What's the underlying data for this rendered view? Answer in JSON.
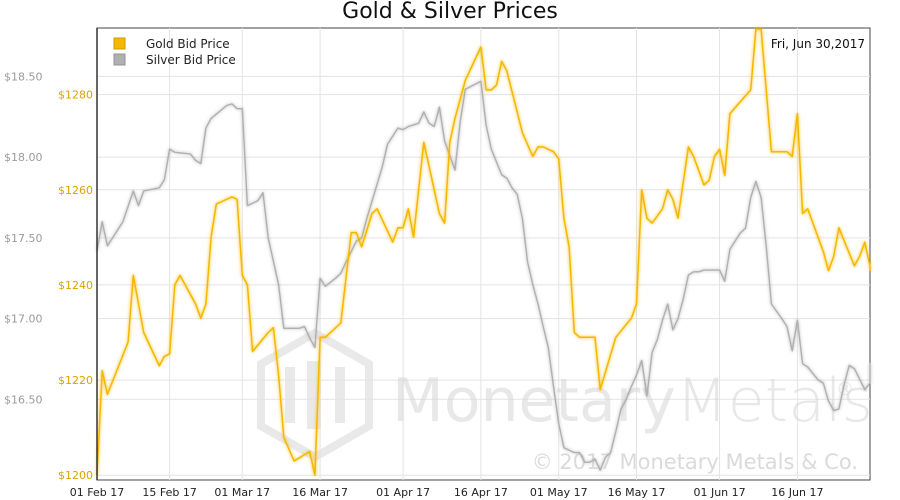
{
  "chart_data": {
    "type": "line",
    "title": "Gold & Silver Prices",
    "date_label": "Fri, Jun 30,2017",
    "x_tick_labels": [
      "01 Feb 17",
      "15 Feb 17",
      "01 Mar 17",
      "16 Mar 17",
      "01 Apr 17",
      "16 Apr 17",
      "01 May 17",
      "16 May 17",
      "01 Jun 17",
      "16 Jun 17"
    ],
    "x_ticks_day": [
      0,
      14,
      28,
      43,
      59,
      74,
      89,
      104,
      120,
      135
    ],
    "x_range_day": [
      0,
      149
    ],
    "grid": true,
    "legend_position": "top-left",
    "y_gold": {
      "ticks": [
        1200,
        1220,
        1240,
        1260,
        1280
      ],
      "tick_labels": [
        "$1200",
        "$1220",
        "$1240",
        "$1260",
        "$1280"
      ],
      "range": [
        1199,
        1294
      ]
    },
    "y_silver": {
      "ticks": [
        16.5,
        17.0,
        17.5,
        18.0,
        18.5
      ],
      "tick_labels": [
        "$16.50",
        "$17.00",
        "$17.50",
        "$18.00",
        "$18.50"
      ],
      "range": [
        16.0,
        18.8
      ]
    },
    "series": [
      {
        "name": "Gold Bid Price",
        "color": "#f5b800",
        "axis": "left",
        "points": [
          [
            0,
            1200
          ],
          [
            1,
            1222
          ],
          [
            2,
            1217
          ],
          [
            6,
            1228
          ],
          [
            7,
            1242
          ],
          [
            9,
            1230
          ],
          [
            12,
            1223
          ],
          [
            13,
            1225
          ],
          [
            14,
            1225.5
          ],
          [
            15,
            1240
          ],
          [
            16,
            1242
          ],
          [
            19,
            1236
          ],
          [
            20,
            1233
          ],
          [
            21,
            1236
          ],
          [
            22,
            1250
          ],
          [
            23,
            1257
          ],
          [
            26,
            1258.5
          ],
          [
            27,
            1258
          ],
          [
            28,
            1242
          ],
          [
            29,
            1240
          ],
          [
            30,
            1226
          ],
          [
            33,
            1230
          ],
          [
            34,
            1231
          ],
          [
            35,
            1221
          ],
          [
            36,
            1208
          ],
          [
            38,
            1203
          ],
          [
            41,
            1205
          ],
          [
            42,
            1200
          ],
          [
            43,
            1229
          ],
          [
            44,
            1229
          ],
          [
            47,
            1232
          ],
          [
            49,
            1251
          ],
          [
            50,
            1251
          ],
          [
            51,
            1248
          ],
          [
            53,
            1255
          ],
          [
            54,
            1256
          ],
          [
            57,
            1249
          ],
          [
            58,
            1252
          ],
          [
            59,
            1252
          ],
          [
            60,
            1256
          ],
          [
            61,
            1250
          ],
          [
            63,
            1270
          ],
          [
            65,
            1260
          ],
          [
            66,
            1255
          ],
          [
            67,
            1253
          ],
          [
            68,
            1270
          ],
          [
            69,
            1275
          ],
          [
            71,
            1283
          ],
          [
            74,
            1290
          ],
          [
            75,
            1281
          ],
          [
            76,
            1281
          ],
          [
            77,
            1282
          ],
          [
            78,
            1287
          ],
          [
            79,
            1285
          ],
          [
            82,
            1272
          ],
          [
            84,
            1267
          ],
          [
            85,
            1269
          ],
          [
            86,
            1269
          ],
          [
            88,
            1268
          ],
          [
            89,
            1266.5
          ],
          [
            90,
            1254
          ],
          [
            91,
            1248
          ],
          [
            92,
            1230
          ],
          [
            93,
            1229
          ],
          [
            96,
            1229
          ],
          [
            97,
            1218
          ],
          [
            100,
            1229
          ],
          [
            103,
            1233
          ],
          [
            104,
            1236
          ],
          [
            105,
            1260
          ],
          [
            106,
            1254
          ],
          [
            107,
            1253
          ],
          [
            109,
            1256
          ],
          [
            110,
            1260
          ],
          [
            111,
            1258
          ],
          [
            112,
            1254
          ],
          [
            114,
            1269
          ],
          [
            115,
            1267
          ],
          [
            117,
            1261
          ],
          [
            118,
            1262
          ],
          [
            119,
            1267
          ],
          [
            120,
            1268.5
          ],
          [
            121,
            1263
          ],
          [
            122,
            1276
          ],
          [
            126,
            1281
          ],
          [
            127,
            1298
          ],
          [
            128,
            1296
          ],
          [
            130,
            1268
          ],
          [
            131,
            1268
          ],
          [
            133,
            1268
          ],
          [
            134,
            1267
          ],
          [
            135,
            1276
          ],
          [
            136,
            1255
          ],
          [
            137,
            1256
          ],
          [
            140,
            1247
          ],
          [
            141,
            1243
          ],
          [
            142,
            1246
          ],
          [
            143,
            1252
          ],
          [
            146,
            1244
          ],
          [
            147,
            1246
          ],
          [
            148,
            1249
          ],
          [
            149,
            1244
          ],
          [
            150,
            1243
          ]
        ]
      },
      {
        "name": "Silver Bid Price",
        "color": "#b0b0b0",
        "axis": "right",
        "points": [
          [
            0,
            17.42
          ],
          [
            1,
            17.6
          ],
          [
            2,
            17.45
          ],
          [
            5,
            17.6
          ],
          [
            7,
            17.79
          ],
          [
            8,
            17.7
          ],
          [
            9,
            17.79
          ],
          [
            12,
            17.81
          ],
          [
            13,
            17.86
          ],
          [
            14,
            18.05
          ],
          [
            15,
            18.03
          ],
          [
            18,
            18.02
          ],
          [
            19,
            17.98
          ],
          [
            20,
            17.96
          ],
          [
            21,
            18.18
          ],
          [
            22,
            18.24
          ],
          [
            25,
            18.32
          ],
          [
            26,
            18.33
          ],
          [
            27,
            18.3
          ],
          [
            28,
            18.3
          ],
          [
            29,
            17.7
          ],
          [
            31,
            17.73
          ],
          [
            32,
            17.78
          ],
          [
            33,
            17.5
          ],
          [
            35,
            17.21
          ],
          [
            36,
            16.94
          ],
          [
            39,
            16.94
          ],
          [
            40,
            16.95
          ],
          [
            41,
            16.88
          ],
          [
            42,
            16.82
          ],
          [
            43,
            17.25
          ],
          [
            44,
            17.2
          ],
          [
            46,
            17.25
          ],
          [
            47,
            17.28
          ],
          [
            48,
            17.35
          ],
          [
            50,
            17.48
          ],
          [
            51,
            17.5
          ],
          [
            52,
            17.62
          ],
          [
            55,
            17.94
          ],
          [
            56,
            18.08
          ],
          [
            58,
            18.18
          ],
          [
            59,
            18.17
          ],
          [
            60,
            18.19
          ],
          [
            61,
            18.2
          ],
          [
            62,
            18.21
          ],
          [
            63,
            18.28
          ],
          [
            64,
            18.21
          ],
          [
            65,
            18.19
          ],
          [
            66,
            18.31
          ],
          [
            67,
            18.1
          ],
          [
            69,
            17.92
          ],
          [
            70,
            18.22
          ],
          [
            71,
            18.42
          ],
          [
            74,
            18.47
          ],
          [
            75,
            18.2
          ],
          [
            76,
            18.05
          ],
          [
            78,
            17.89
          ],
          [
            79,
            17.87
          ],
          [
            80,
            17.81
          ],
          [
            81,
            17.77
          ],
          [
            82,
            17.62
          ],
          [
            83,
            17.35
          ],
          [
            84,
            17.21
          ],
          [
            85,
            17.09
          ],
          [
            86,
            16.95
          ],
          [
            87,
            16.82
          ],
          [
            88,
            16.58
          ],
          [
            89,
            16.35
          ],
          [
            90,
            16.2
          ],
          [
            92,
            16.17
          ],
          [
            93,
            16.17
          ],
          [
            94,
            16.11
          ],
          [
            95,
            16.11
          ],
          [
            96,
            16.13
          ],
          [
            97,
            16.06
          ],
          [
            98,
            16.14
          ],
          [
            99,
            16.17
          ],
          [
            100,
            16.3
          ],
          [
            101,
            16.44
          ],
          [
            102,
            16.5
          ],
          [
            103,
            16.58
          ],
          [
            104,
            16.65
          ],
          [
            105,
            16.74
          ],
          [
            106,
            16.52
          ],
          [
            107,
            16.79
          ],
          [
            108,
            16.87
          ],
          [
            109,
            16.99
          ],
          [
            110,
            17.09
          ],
          [
            111,
            16.93
          ],
          [
            112,
            17.0
          ],
          [
            113,
            17.12
          ],
          [
            114,
            17.27
          ],
          [
            115,
            17.29
          ],
          [
            116,
            17.29
          ],
          [
            117,
            17.3
          ],
          [
            118,
            17.3
          ],
          [
            119,
            17.3
          ],
          [
            120,
            17.3
          ],
          [
            121,
            17.23
          ],
          [
            122,
            17.43
          ],
          [
            124,
            17.53
          ],
          [
            125,
            17.56
          ],
          [
            126,
            17.75
          ],
          [
            127,
            17.85
          ],
          [
            128,
            17.75
          ],
          [
            129,
            17.45
          ],
          [
            130,
            17.09
          ],
          [
            132,
            17.0
          ],
          [
            133,
            16.95
          ],
          [
            134,
            16.8
          ],
          [
            135,
            16.99
          ],
          [
            136,
            16.72
          ],
          [
            137,
            16.7
          ],
          [
            139,
            16.62
          ],
          [
            140,
            16.6
          ],
          [
            141,
            16.49
          ],
          [
            142,
            16.43
          ],
          [
            143,
            16.44
          ],
          [
            144,
            16.59
          ],
          [
            145,
            16.71
          ],
          [
            146,
            16.69
          ],
          [
            148,
            16.56
          ],
          [
            149,
            16.6
          ],
          [
            150,
            16.71
          ],
          [
            151,
            16.72
          ],
          [
            152,
            16.67
          ]
        ]
      }
    ]
  },
  "watermark": {
    "brand_left": "Monetary",
    "brand_right": "Metals",
    "registered": "®",
    "copyright": "© 2017 Monetary Metals & Co."
  }
}
